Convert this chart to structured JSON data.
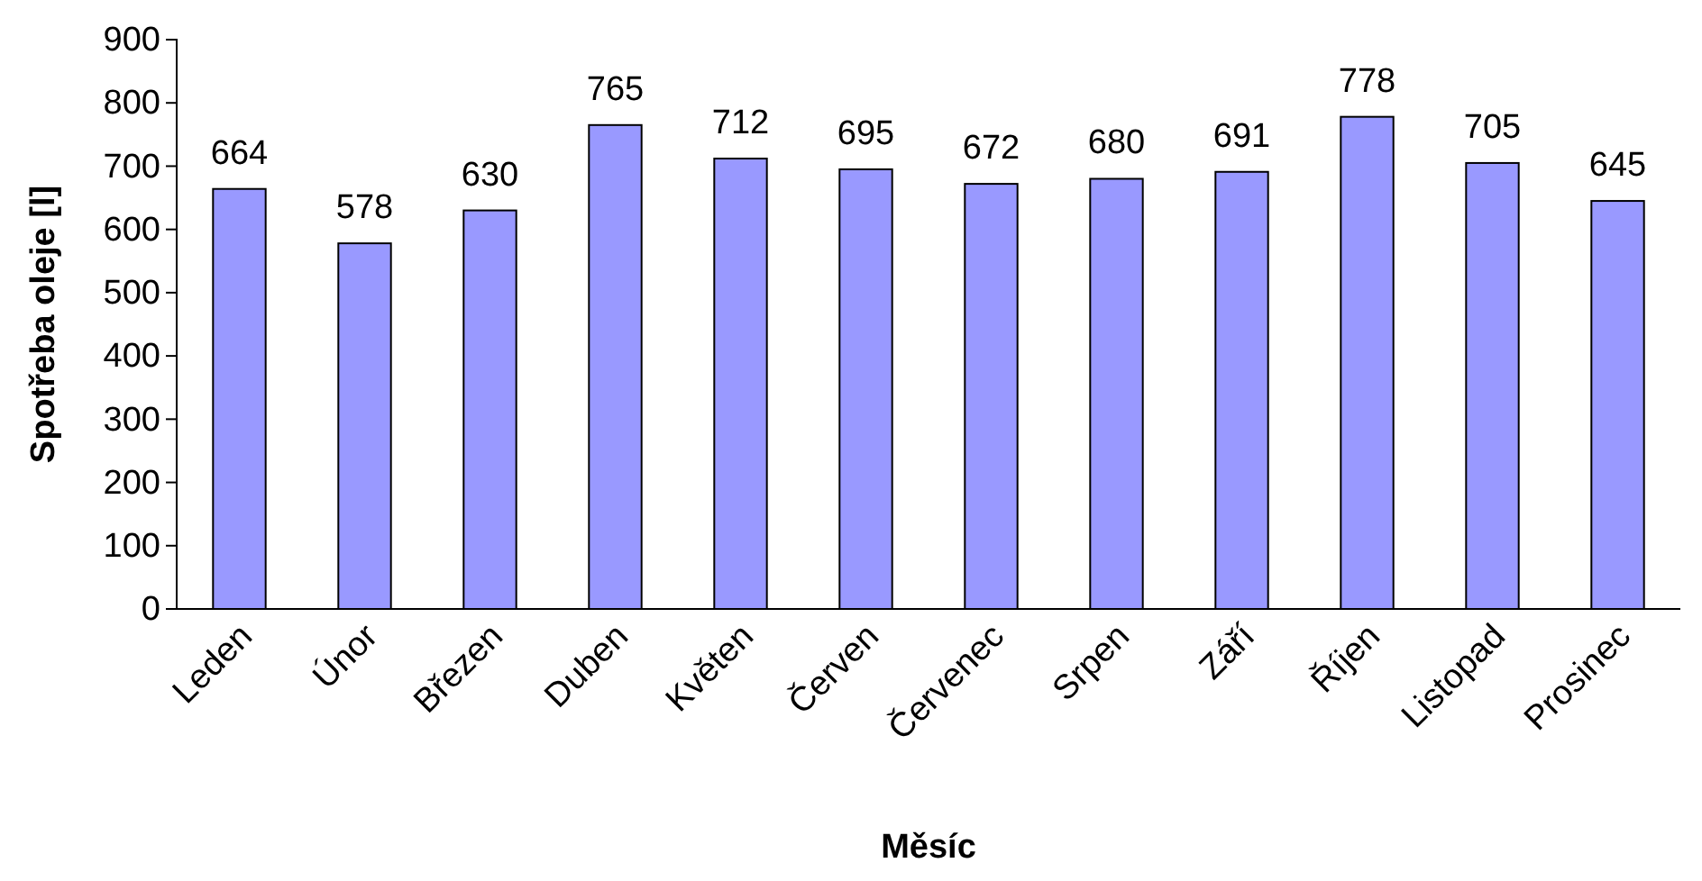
{
  "chart_data": {
    "type": "bar",
    "xlabel": "Měsíc",
    "ylabel": "Spotřeba oleje [l]",
    "categories": [
      "Leden",
      "Únor",
      "Březen",
      "Duben",
      "Květen",
      "Červen",
      "Červenec",
      "Srpen",
      "Září",
      "Říjen",
      "Listopad",
      "Prosinec"
    ],
    "values": [
      664,
      578,
      630,
      765,
      712,
      695,
      672,
      680,
      691,
      778,
      705,
      645
    ],
    "color": "#9999ff",
    "ylim": [
      0,
      900
    ],
    "yticks": [
      0,
      100,
      200,
      300,
      400,
      500,
      600,
      700,
      800,
      900
    ],
    "data_labels": true
  }
}
